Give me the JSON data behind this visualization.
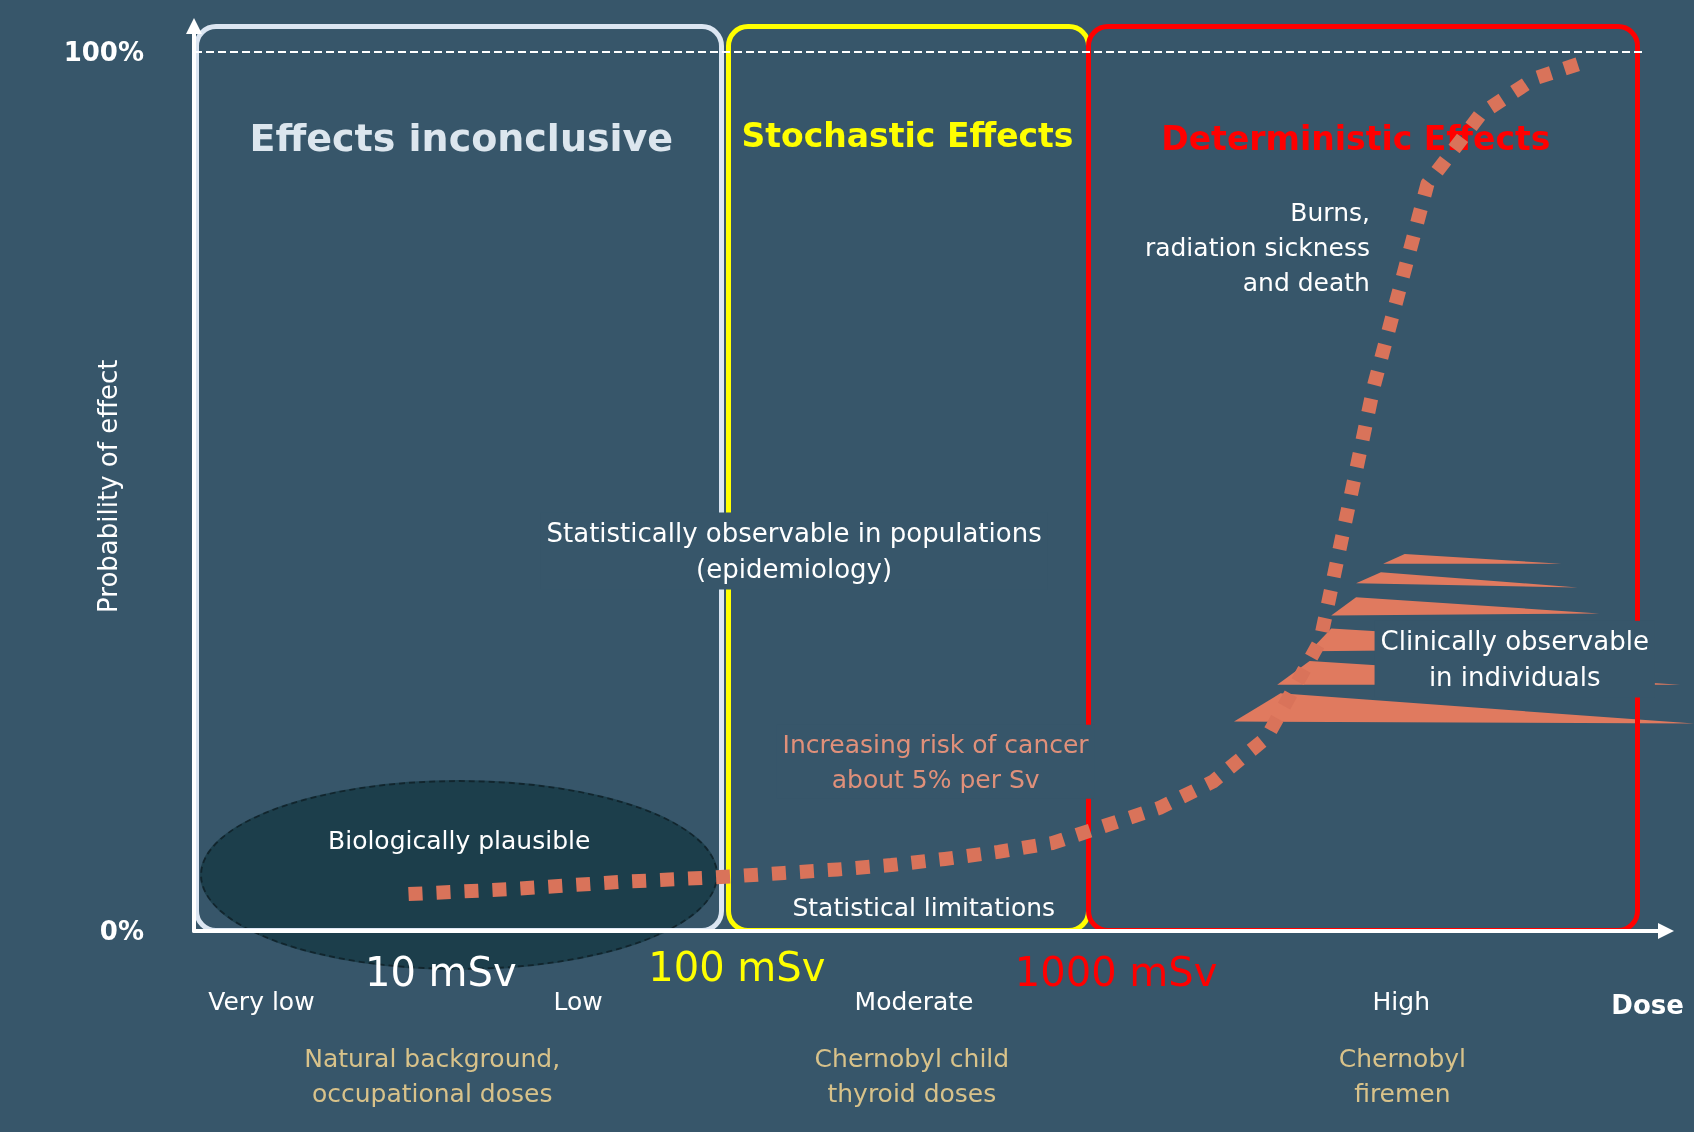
{
  "chart_data": {
    "type": "line",
    "xlabel": "Dose",
    "ylabel": "Probability of effect",
    "categories": [
      null,
      null,
      null,
      null,
      null,
      null,
      null,
      null,
      null,
      null,
      null,
      null,
      null,
      null,
      null,
      null,
      null,
      null,
      null,
      null,
      null,
      null,
      null,
      null,
      null,
      null,
      null,
      null
    ],
    "series": [
      {
        "color": "#d9735a",
        "values": [
          null,
          null,
          null,
          null,
          4.2,
          4.5,
          4.8,
          5.2,
          5.6,
          5.9,
          6.2,
          6.6,
          7.0,
          7.5,
          8.2,
          9.0,
          10,
          12,
          14,
          17,
          22,
          33,
          62,
          85,
          93,
          97,
          99,
          null
        ]
      }
    ],
    "ylim": [
      0,
      100
    ],
    "yticks": [
      {
        "value": 0,
        "label": "0%"
      },
      {
        "value": 100,
        "label": "100%"
      }
    ],
    "ref_lines": [
      {
        "axis": "y",
        "value": 100,
        "color": "#ffffff",
        "line_style": "dashed"
      }
    ],
    "marker": "none",
    "line_style": "dotted",
    "grid": false,
    "annotations": [
      "Effects inconclusive",
      "Stochastic Effects",
      "Deterministic Effects",
      "Burns,\nradiation sickness\nand death",
      "Statistically observable in populations\n(epidemiology)",
      "Clinically observable\nin individuals",
      "Increasing risk of cancer\nabout 5% per Sv",
      "Biologically plausible",
      "Statistical limitations",
      "10 mSv",
      "100 mSv",
      "1000 mSv",
      "Very low",
      "Low",
      "Moderate",
      "High",
      "Natural background,\noccupational doses",
      "Chernobyl child\nthyroid doses",
      "Chernobyl\nfiremen"
    ]
  }
}
